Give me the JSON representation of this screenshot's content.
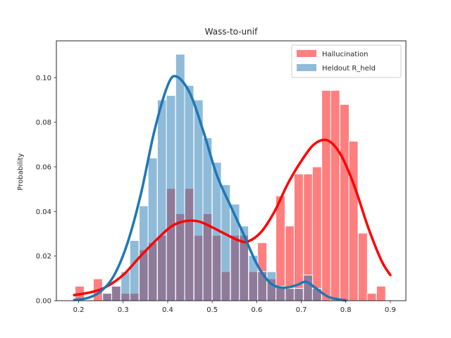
{
  "chart_data": {
    "type": "bar",
    "title": "Wass-to-unif",
    "xlabel": "",
    "ylabel": "Probability",
    "xlim": [
      0.15,
      0.935
    ],
    "ylim": [
      0,
      0.1165
    ],
    "xticks": [
      0.2,
      0.3,
      0.4,
      0.5,
      0.6,
      0.7,
      0.8,
      0.9
    ],
    "xtick_labels": [
      "0.2",
      "0.3",
      "0.4",
      "0.5",
      "0.6",
      "0.7",
      "0.8",
      "0.9"
    ],
    "yticks": [
      0.0,
      0.02,
      0.04,
      0.06,
      0.08,
      0.1
    ],
    "ytick_labels": [
      "0.00",
      "0.02",
      "0.04",
      "0.06",
      "0.08",
      "0.10"
    ],
    "grid": false,
    "legend_position": "top-right",
    "legend": [
      "Hallucination",
      "Heldout R_held"
    ],
    "bin_width": 0.0205,
    "series": [
      {
        "name": "Hallucination",
        "color": "#ff0000",
        "bar_opacity": 0.5,
        "bins_start": [
          0.192,
          0.213,
          0.233,
          0.254,
          0.274,
          0.295,
          0.315,
          0.336,
          0.356,
          0.377,
          0.397,
          0.418,
          0.438,
          0.459,
          0.479,
          0.5,
          0.52,
          0.541,
          0.561,
          0.582,
          0.602,
          0.623,
          0.643,
          0.664,
          0.684,
          0.705,
          0.725,
          0.746,
          0.766,
          0.787,
          0.807,
          0.828,
          0.848,
          0.869
        ],
        "values": [
          0.0065,
          0.0,
          0.0098,
          0.0033,
          0.0065,
          0.0033,
          0.0033,
          0.0228,
          0.026,
          0.0293,
          0.0503,
          0.039,
          0.0503,
          0.0293,
          0.039,
          0.0293,
          0.013,
          0.0293,
          0.0293,
          0.013,
          0.026,
          0.0098,
          0.047,
          0.0335,
          0.0568,
          0.0568,
          0.06,
          0.0943,
          0.0943,
          0.088,
          0.0715,
          0.0303,
          0.0033,
          0.0065
        ],
        "kde_x": [
          0.19,
          0.23,
          0.26,
          0.3,
          0.34,
          0.38,
          0.41,
          0.44,
          0.47,
          0.5,
          0.53,
          0.56,
          0.58,
          0.61,
          0.64,
          0.67,
          0.7,
          0.73,
          0.76,
          0.79,
          0.82,
          0.85,
          0.88,
          0.9
        ],
        "kde_y": [
          0.0025,
          0.0039,
          0.006,
          0.0115,
          0.0202,
          0.0283,
          0.0335,
          0.0357,
          0.0355,
          0.0329,
          0.0298,
          0.027,
          0.0265,
          0.0308,
          0.04,
          0.0525,
          0.0626,
          0.0703,
          0.0718,
          0.065,
          0.051,
          0.033,
          0.018,
          0.0115
        ]
      },
      {
        "name": "Heldout R_held",
        "color": "#1f77b4",
        "bar_opacity": 0.5,
        "bins_start": [
          0.192,
          0.213,
          0.233,
          0.254,
          0.274,
          0.295,
          0.315,
          0.336,
          0.356,
          0.377,
          0.397,
          0.418,
          0.438,
          0.459,
          0.479,
          0.5,
          0.52,
          0.541,
          0.561,
          0.582,
          0.602,
          0.623,
          0.643,
          0.664,
          0.684,
          0.705,
          0.725,
          0.746,
          0.766,
          0.787,
          0.807,
          0.828,
          0.848,
          0.869
        ],
        "values": [
          0.0,
          0.0,
          0.0,
          0.0033,
          0.0065,
          0.013,
          0.027,
          0.0425,
          0.064,
          0.09,
          0.092,
          0.1105,
          0.0965,
          0.09,
          0.073,
          0.062,
          0.052,
          0.0433,
          0.0335,
          0.0203,
          0.013,
          0.013,
          0.0065,
          0.0055,
          0.0055,
          0.0115,
          0.0055,
          0.0,
          0.0,
          0.0,
          0.0,
          0.0,
          0.0,
          0.0
        ],
        "kde_x": [
          0.19,
          0.22,
          0.25,
          0.28,
          0.31,
          0.34,
          0.37,
          0.4,
          0.42,
          0.45,
          0.48,
          0.51,
          0.54,
          0.57,
          0.6,
          0.63,
          0.66,
          0.69,
          0.71,
          0.73,
          0.76,
          0.79,
          0.8
        ],
        "kde_y": [
          0.0003,
          0.0012,
          0.0042,
          0.0115,
          0.026,
          0.048,
          0.076,
          0.0965,
          0.1005,
          0.093,
          0.076,
          0.0565,
          0.043,
          0.03,
          0.0165,
          0.008,
          0.0058,
          0.007,
          0.0085,
          0.006,
          0.0018,
          0.0004,
          0.0002
        ]
      }
    ]
  }
}
